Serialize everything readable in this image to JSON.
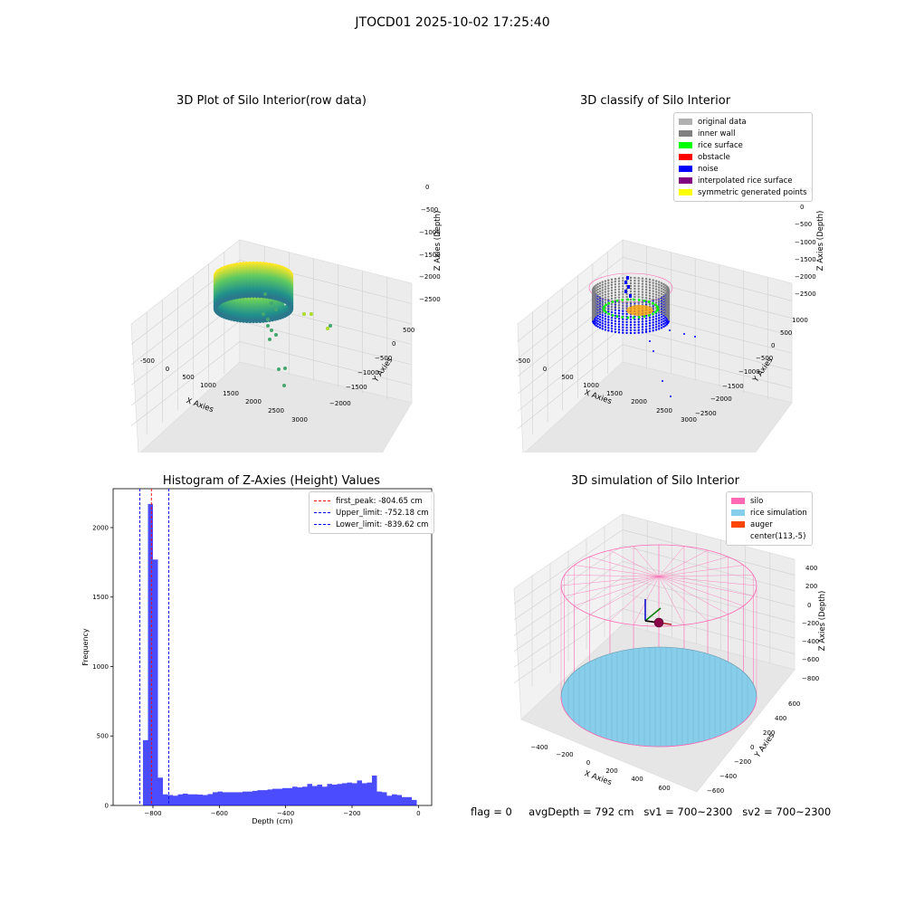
{
  "suptitle": "JTOCD01 2025-10-02 17:25:40",
  "footer": {
    "flag": "flag = 0",
    "avgDepth": "avgDepth = 792 cm",
    "sv1": "sv1 = 700~2300",
    "sv2": "sv2 = 700~2300"
  },
  "chart_data": [
    {
      "type": "scatter",
      "title": "3D Plot of Silo Interior(row data)",
      "xlabel": "X Axies",
      "ylabel": "Y Axies",
      "zlabel": "Z Axies (Depth)",
      "x_ticks": [
        "-500",
        "0",
        "500",
        "1000",
        "1500",
        "2000",
        "2500",
        "3000"
      ],
      "y_ticks": [
        "500",
        "0",
        "−500",
        "−1000",
        "−1500",
        "−2000"
      ],
      "z_ticks": [
        "0",
        "−500",
        "−1000",
        "−1500",
        "−2000",
        "−2500"
      ],
      "colormap": "viridis"
    },
    {
      "type": "scatter",
      "title": "3D classify of Silo Interior",
      "xlabel": "X Axies",
      "ylabel": "Y Axies",
      "zlabel": "Z Axies (Depth)",
      "x_ticks": [
        "-500",
        "0",
        "500",
        "1000",
        "1500",
        "2000",
        "2500",
        "3000"
      ],
      "y_ticks": [
        "1000",
        "500",
        "0",
        "−500",
        "−1000",
        "−1500",
        "−2000",
        "−2500"
      ],
      "z_ticks": [
        "500",
        "0",
        "−500",
        "−1000",
        "−1500",
        "−2000",
        "−2500"
      ],
      "legend": [
        {
          "label": "original data",
          "color": "#b0b0b0"
        },
        {
          "label": "inner wall",
          "color": "#808080"
        },
        {
          "label": "rice surface",
          "color": "#00ff00"
        },
        {
          "label": "obstacle",
          "color": "#ff0000"
        },
        {
          "label": "noise",
          "color": "#0000ff"
        },
        {
          "label": "interpolated rice surface",
          "color": "#800080"
        },
        {
          "label": "symmetric generated points",
          "color": "#ffff00"
        }
      ]
    },
    {
      "type": "bar",
      "title": "Histogram of Z-Axies (Height) Values",
      "xlabel": "Depth (cm)",
      "ylabel": "Frequency",
      "xlim": [
        -920,
        40
      ],
      "ylim": [
        0,
        2280
      ],
      "x_ticks": [
        "−800",
        "−600",
        "−400",
        "−200",
        "0"
      ],
      "y_ticks": [
        "0",
        "500",
        "1000",
        "1500",
        "2000"
      ],
      "bar_color": "#0000ff",
      "bins": [
        {
          "x0": -830,
          "x1": -815,
          "value": 470
        },
        {
          "x0": -815,
          "x1": -800,
          "value": 2170
        },
        {
          "x0": -800,
          "x1": -785,
          "value": 1770
        },
        {
          "x0": -785,
          "x1": -770,
          "value": 200
        },
        {
          "x0": -770,
          "x1": -755,
          "value": 80
        },
        {
          "x0": -755,
          "x1": -740,
          "value": 75
        },
        {
          "x0": -740,
          "x1": -725,
          "value": 70
        },
        {
          "x0": -725,
          "x1": -710,
          "value": 80
        },
        {
          "x0": -710,
          "x1": -695,
          "value": 85
        },
        {
          "x0": -695,
          "x1": -680,
          "value": 80
        },
        {
          "x0": -680,
          "x1": -665,
          "value": 80
        },
        {
          "x0": -665,
          "x1": -650,
          "value": 78
        },
        {
          "x0": -650,
          "x1": -635,
          "value": 75
        },
        {
          "x0": -635,
          "x1": -620,
          "value": 82
        },
        {
          "x0": -620,
          "x1": -605,
          "value": 95
        },
        {
          "x0": -605,
          "x1": -590,
          "value": 100
        },
        {
          "x0": -590,
          "x1": -575,
          "value": 95
        },
        {
          "x0": -575,
          "x1": -560,
          "value": 95
        },
        {
          "x0": -560,
          "x1": -545,
          "value": 95
        },
        {
          "x0": -545,
          "x1": -530,
          "value": 95
        },
        {
          "x0": -530,
          "x1": -515,
          "value": 100
        },
        {
          "x0": -515,
          "x1": -500,
          "value": 100
        },
        {
          "x0": -500,
          "x1": -485,
          "value": 105
        },
        {
          "x0": -485,
          "x1": -470,
          "value": 110
        },
        {
          "x0": -470,
          "x1": -455,
          "value": 110
        },
        {
          "x0": -455,
          "x1": -440,
          "value": 115
        },
        {
          "x0": -440,
          "x1": -425,
          "value": 120
        },
        {
          "x0": -425,
          "x1": -410,
          "value": 120
        },
        {
          "x0": -410,
          "x1": -395,
          "value": 125
        },
        {
          "x0": -395,
          "x1": -380,
          "value": 125
        },
        {
          "x0": -380,
          "x1": -365,
          "value": 135
        },
        {
          "x0": -365,
          "x1": -350,
          "value": 130
        },
        {
          "x0": -350,
          "x1": -335,
          "value": 135
        },
        {
          "x0": -335,
          "x1": -320,
          "value": 155
        },
        {
          "x0": -320,
          "x1": -305,
          "value": 140
        },
        {
          "x0": -305,
          "x1": -290,
          "value": 150
        },
        {
          "x0": -290,
          "x1": -275,
          "value": 135
        },
        {
          "x0": -275,
          "x1": -260,
          "value": 155
        },
        {
          "x0": -260,
          "x1": -245,
          "value": 150
        },
        {
          "x0": -245,
          "x1": -230,
          "value": 155
        },
        {
          "x0": -230,
          "x1": -215,
          "value": 160
        },
        {
          "x0": -215,
          "x1": -200,
          "value": 165
        },
        {
          "x0": -200,
          "x1": -185,
          "value": 160
        },
        {
          "x0": -185,
          "x1": -170,
          "value": 180
        },
        {
          "x0": -170,
          "x1": -155,
          "value": 160
        },
        {
          "x0": -155,
          "x1": -140,
          "value": 165
        },
        {
          "x0": -140,
          "x1": -125,
          "value": 215
        },
        {
          "x0": -125,
          "x1": -110,
          "value": 100
        },
        {
          "x0": -110,
          "x1": -95,
          "value": 95
        },
        {
          "x0": -95,
          "x1": -80,
          "value": 70
        },
        {
          "x0": -80,
          "x1": -65,
          "value": 80
        },
        {
          "x0": -65,
          "x1": -50,
          "value": 75
        },
        {
          "x0": -50,
          "x1": -35,
          "value": 60
        },
        {
          "x0": -35,
          "x1": -20,
          "value": 60
        },
        {
          "x0": -20,
          "x1": -5,
          "value": 40
        }
      ],
      "vlines": [
        {
          "x": -804.65,
          "color": "#ff0000",
          "label": "first_peak: -804.65 cm"
        },
        {
          "x": -752.18,
          "color": "#0000ff",
          "label": "Upper_limit: -752.18 cm"
        },
        {
          "x": -839.62,
          "color": "#0000ff",
          "label": "Lower_limit: -839.62 cm"
        }
      ],
      "legend_position": "upper right"
    },
    {
      "type": "scatter",
      "title": "3D simulation of Silo Interior",
      "xlabel": "X Axies",
      "ylabel": "Y Axies",
      "zlabel": "Z Axies (Depth)",
      "x_ticks": [
        "−400",
        "−200",
        "0",
        "200",
        "400",
        "600"
      ],
      "y_ticks": [
        "600",
        "400",
        "200",
        "0",
        "−200",
        "−400",
        "−600"
      ],
      "z_ticks": [
        "400",
        "200",
        "0",
        "−200",
        "−400",
        "−600",
        "−800"
      ],
      "legend": [
        {
          "label": "silo",
          "color": "#ff69b4"
        },
        {
          "label": "rice simulation",
          "color": "#87ceeb"
        },
        {
          "label": "auger",
          "color": "#ff4500"
        },
        {
          "label": "center(113,-5)",
          "color": ""
        }
      ]
    }
  ]
}
